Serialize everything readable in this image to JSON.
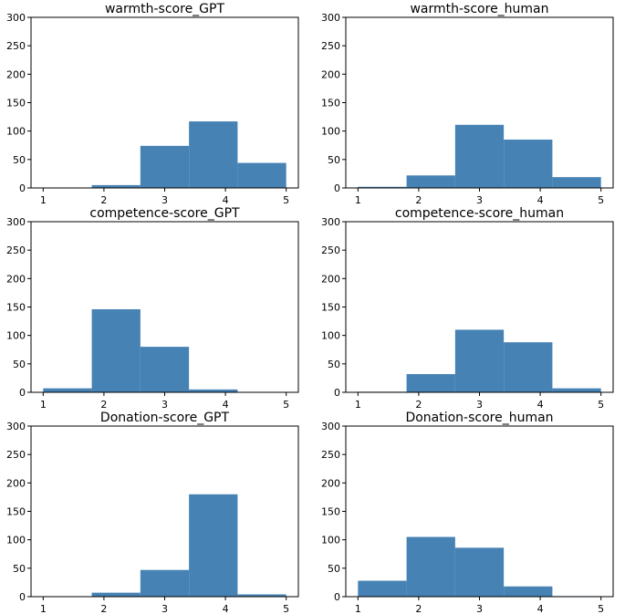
{
  "chart_data": [
    {
      "type": "bar",
      "title": "warmth-score_GPT",
      "bin_edges": [
        1.0,
        1.8,
        2.6,
        3.4,
        4.2,
        5.0
      ],
      "values": [
        0,
        5,
        74,
        117,
        44
      ],
      "xticks": [
        1,
        2,
        3,
        4,
        5
      ],
      "yticks": [
        0,
        50,
        100,
        150,
        200,
        250,
        300
      ],
      "xlim": [
        0.8,
        5.2
      ],
      "ylim": [
        0,
        300
      ],
      "color": "#4682b4"
    },
    {
      "type": "bar",
      "title": "warmth-score_human",
      "bin_edges": [
        1.0,
        1.8,
        2.6,
        3.4,
        4.2,
        5.0
      ],
      "values": [
        2,
        22,
        111,
        85,
        19
      ],
      "xticks": [
        1,
        2,
        3,
        4,
        5
      ],
      "yticks": [
        0,
        50,
        100,
        150,
        200,
        250,
        300
      ],
      "xlim": [
        0.8,
        5.2
      ],
      "ylim": [
        0,
        300
      ],
      "color": "#4682b4"
    },
    {
      "type": "bar",
      "title": "competence-score_GPT",
      "bin_edges": [
        1.0,
        1.8,
        2.6,
        3.4,
        4.2,
        5.0
      ],
      "values": [
        7,
        146,
        80,
        5,
        0
      ],
      "xticks": [
        1,
        2,
        3,
        4,
        5
      ],
      "yticks": [
        0,
        50,
        100,
        150,
        200,
        250,
        300
      ],
      "xlim": [
        0.8,
        5.2
      ],
      "ylim": [
        0,
        300
      ],
      "color": "#4682b4"
    },
    {
      "type": "bar",
      "title": "competence-score_human",
      "bin_edges": [
        1.0,
        1.8,
        2.6,
        3.4,
        4.2,
        5.0
      ],
      "values": [
        1,
        32,
        110,
        88,
        7
      ],
      "xticks": [
        1,
        2,
        3,
        4,
        5
      ],
      "yticks": [
        0,
        50,
        100,
        150,
        200,
        250,
        300
      ],
      "xlim": [
        0.8,
        5.2
      ],
      "ylim": [
        0,
        300
      ],
      "color": "#4682b4"
    },
    {
      "type": "bar",
      "title": "Donation-score_GPT",
      "bin_edges": [
        1.0,
        1.8,
        2.6,
        3.4,
        4.2,
        5.0
      ],
      "values": [
        0,
        7,
        47,
        180,
        4
      ],
      "xticks": [
        1,
        2,
        3,
        4,
        5
      ],
      "yticks": [
        0,
        50,
        100,
        150,
        200,
        250,
        300
      ],
      "xlim": [
        0.8,
        5.2
      ],
      "ylim": [
        0,
        300
      ],
      "color": "#4682b4"
    },
    {
      "type": "bar",
      "title": "Donation-score_human",
      "bin_edges": [
        1.0,
        1.8,
        2.6,
        3.4,
        4.2,
        5.0
      ],
      "values": [
        28,
        105,
        86,
        18,
        1
      ],
      "xticks": [
        1,
        2,
        3,
        4,
        5
      ],
      "yticks": [
        0,
        50,
        100,
        150,
        200,
        250,
        300
      ],
      "xlim": [
        0.8,
        5.2
      ],
      "ylim": [
        0,
        300
      ],
      "color": "#4682b4"
    }
  ]
}
